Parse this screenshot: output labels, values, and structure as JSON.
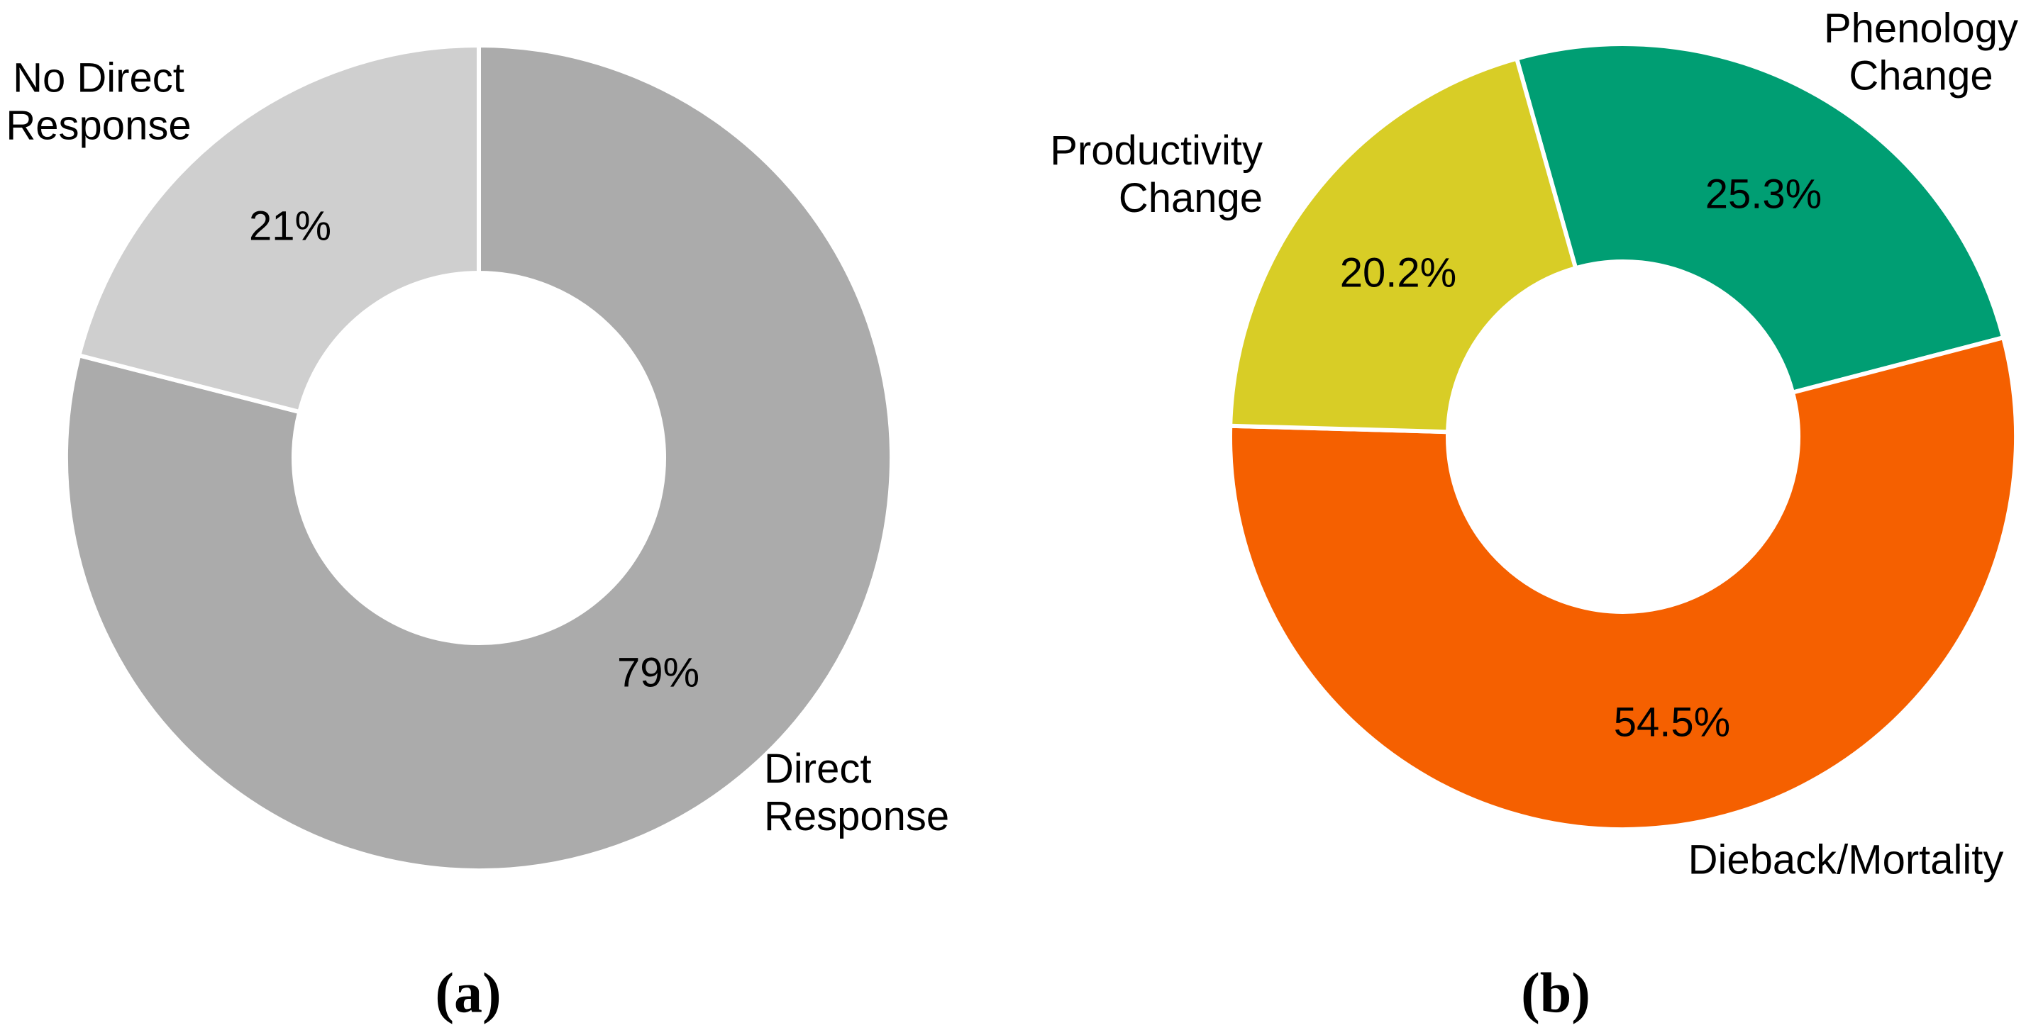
{
  "chart_data": [
    {
      "type": "pie",
      "subtype": "donut",
      "panel_caption": "(a)",
      "labels": [
        "Direct Response",
        "No Direct Response"
      ],
      "values": [
        79,
        21
      ],
      "value_labels": [
        "79%",
        "21%"
      ],
      "colors": [
        "#ABABAB",
        "#CFCFCF"
      ],
      "start_angle_deg": 0,
      "direction": "clockwise",
      "donut_hole_ratio": 0.45,
      "slice_separator_color": "#FFFFFF",
      "legend_position": "labels-outside-slices",
      "background": "#FFFFFF"
    },
    {
      "type": "pie",
      "subtype": "donut",
      "panel_caption": "(b)",
      "labels": [
        "Phenology Change",
        "Dieback/Mortality",
        "Productivity Change"
      ],
      "values": [
        25.3,
        54.5,
        20.2
      ],
      "value_labels": [
        "25.3%",
        "54.5%",
        "20.2%"
      ],
      "colors": [
        "#009E73",
        "#F56000",
        "#D8CD26"
      ],
      "start_angle_deg": -15.7,
      "direction": "clockwise",
      "donut_hole_ratio": 0.45,
      "slice_separator_color": "#FFFFFF",
      "legend_position": "labels-outside-slices",
      "background": "#FFFFFF"
    }
  ]
}
